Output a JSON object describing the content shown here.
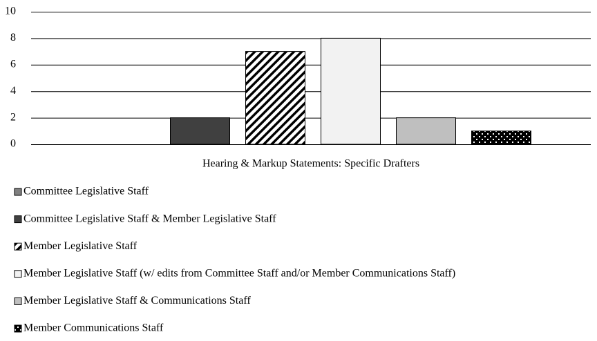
{
  "chart_data": {
    "type": "bar",
    "categories": [
      "Hearing & Markup Statements: Specific Drafters"
    ],
    "series": [
      {
        "name": "Committee Legislative Staff",
        "color": "#808080",
        "values": [
          0
        ]
      },
      {
        "name": "Committee Legislative Staff & Member Legislative Staff",
        "color": "#404040",
        "values": [
          2
        ]
      },
      {
        "name": "Member Legislative Staff",
        "color": "#000000",
        "pattern": "stripes",
        "values": [
          7
        ]
      },
      {
        "name": "Member Legislative Staff (w/ edits from Committee Staff and/or Member Communications Staff)",
        "color": "#f2f2f2",
        "values": [
          8
        ]
      },
      {
        "name": "Member Legislative Staff & Communications Staff",
        "color": "#bfbfbf",
        "values": [
          2
        ]
      },
      {
        "name": "Member Communications Staff",
        "color": "#000000",
        "pattern": "dots",
        "values": [
          1
        ]
      }
    ],
    "ylim": [
      0,
      10
    ],
    "yticks": [
      0,
      2,
      4,
      6,
      8,
      10
    ],
    "grid": true,
    "legend": "bottom"
  }
}
